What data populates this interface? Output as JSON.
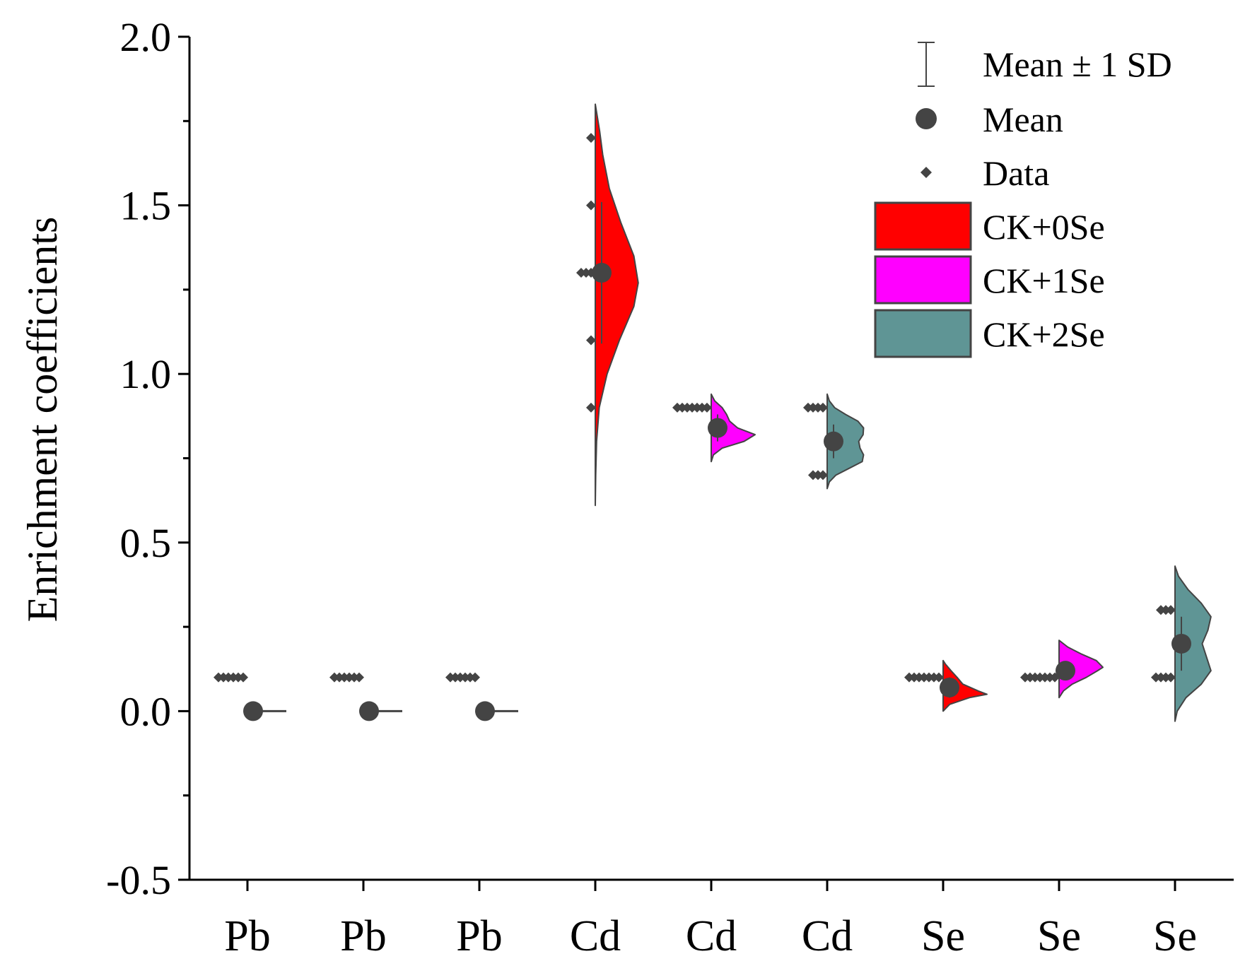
{
  "chart_data": {
    "type": "half-violin",
    "ylabel": "Enrichment coefficients",
    "xlabel": "",
    "ylim": [
      -0.5,
      2.0
    ],
    "y_ticks": [
      -0.5,
      0.0,
      0.5,
      1.0,
      1.5,
      2.0
    ],
    "y_tick_labels": [
      "-0.5",
      "0.0",
      "0.5",
      "1.0",
      "1.5",
      "2.0"
    ],
    "categories": [
      "Pb",
      "Pb",
      "Pb",
      "Cd",
      "Cd",
      "Cd",
      "Se",
      "Se",
      "Se"
    ],
    "legend": {
      "sd_label": "Mean ± 1 SD",
      "mean_label": "Mean",
      "data_label": "Data"
    },
    "series": [
      {
        "name": "CK+0Se",
        "color": "#ff0000"
      },
      {
        "name": "CK+1Se",
        "color": "#ff00ff"
      },
      {
        "name": "CK+2Se",
        "color": "#5f9595"
      }
    ],
    "groups": [
      {
        "category": "Pb",
        "series": "CK+0Se",
        "mean": 0.0,
        "sd": 0.0,
        "points": [
          0.1,
          0.1,
          0.1,
          0.1,
          0.1,
          0.1
        ],
        "violin": []
      },
      {
        "category": "Pb",
        "series": "CK+1Se",
        "mean": 0.0,
        "sd": 0.0,
        "points": [
          0.1,
          0.1,
          0.1,
          0.1,
          0.1,
          0.1
        ],
        "violin": []
      },
      {
        "category": "Pb",
        "series": "CK+2Se",
        "mean": 0.0,
        "sd": 0.0,
        "points": [
          0.1,
          0.1,
          0.1,
          0.1,
          0.1,
          0.1
        ],
        "violin": []
      },
      {
        "category": "Cd",
        "series": "CK+0Se",
        "mean": 1.3,
        "sd": 0.21,
        "points": [
          0.9,
          1.1,
          1.3,
          1.3,
          1.3,
          1.5,
          1.7
        ],
        "violin": [
          [
            0.61,
            0
          ],
          [
            0.7,
            0.01
          ],
          [
            0.8,
            0.03
          ],
          [
            0.9,
            0.09
          ],
          [
            1.0,
            0.27
          ],
          [
            1.1,
            0.55
          ],
          [
            1.2,
            0.88
          ],
          [
            1.27,
            0.98
          ],
          [
            1.35,
            0.88
          ],
          [
            1.45,
            0.58
          ],
          [
            1.55,
            0.32
          ],
          [
            1.65,
            0.17
          ],
          [
            1.72,
            0.1
          ],
          [
            1.8,
            0.0
          ]
        ]
      },
      {
        "category": "Cd",
        "series": "CK+1Se",
        "mean": 0.84,
        "sd": 0.04,
        "points": [
          0.9,
          0.9,
          0.9,
          0.9,
          0.9,
          0.9,
          0.9
        ],
        "violin": [
          [
            0.74,
            0
          ],
          [
            0.76,
            0.05
          ],
          [
            0.78,
            0.25
          ],
          [
            0.8,
            0.75
          ],
          [
            0.82,
            1.0
          ],
          [
            0.84,
            0.6
          ],
          [
            0.86,
            0.42
          ],
          [
            0.88,
            0.35
          ],
          [
            0.9,
            0.25
          ],
          [
            0.92,
            0.08
          ],
          [
            0.94,
            0
          ]
        ]
      },
      {
        "category": "Cd",
        "series": "CK+2Se",
        "mean": 0.8,
        "sd": 0.05,
        "points": [
          0.7,
          0.7,
          0.7,
          0.9,
          0.9,
          0.9,
          0.9
        ],
        "violin": [
          [
            0.66,
            0
          ],
          [
            0.68,
            0.05
          ],
          [
            0.7,
            0.2
          ],
          [
            0.72,
            0.5
          ],
          [
            0.74,
            0.8
          ],
          [
            0.76,
            0.83
          ],
          [
            0.78,
            0.75
          ],
          [
            0.8,
            0.72
          ],
          [
            0.82,
            0.82
          ],
          [
            0.84,
            0.83
          ],
          [
            0.86,
            0.7
          ],
          [
            0.88,
            0.42
          ],
          [
            0.9,
            0.17
          ],
          [
            0.92,
            0.05
          ],
          [
            0.94,
            0
          ]
        ]
      },
      {
        "category": "Se",
        "series": "CK+0Se",
        "mean": 0.07,
        "sd": 0.03,
        "points": [
          0.1,
          0.1,
          0.1,
          0.1,
          0.1,
          0.1,
          0.1
        ],
        "violin": [
          [
            0.0,
            0
          ],
          [
            0.02,
            0.15
          ],
          [
            0.04,
            0.6
          ],
          [
            0.05,
            1.0
          ],
          [
            0.06,
            0.8
          ],
          [
            0.08,
            0.45
          ],
          [
            0.1,
            0.32
          ],
          [
            0.12,
            0.18
          ],
          [
            0.14,
            0.05
          ],
          [
            0.15,
            0
          ]
        ]
      },
      {
        "category": "Se",
        "series": "CK+1Se",
        "mean": 0.12,
        "sd": 0.02,
        "points": [
          0.1,
          0.1,
          0.1,
          0.1,
          0.1,
          0.1,
          0.1
        ],
        "violin": [
          [
            0.04,
            0
          ],
          [
            0.06,
            0.1
          ],
          [
            0.08,
            0.3
          ],
          [
            0.1,
            0.62
          ],
          [
            0.12,
            0.88
          ],
          [
            0.13,
            1.0
          ],
          [
            0.15,
            0.85
          ],
          [
            0.17,
            0.5
          ],
          [
            0.19,
            0.2
          ],
          [
            0.21,
            0
          ]
        ]
      },
      {
        "category": "Se",
        "series": "CK+2Se",
        "mean": 0.2,
        "sd": 0.08,
        "points": [
          0.1,
          0.1,
          0.1,
          0.1,
          0.3,
          0.3,
          0.3
        ],
        "violin": [
          [
            -0.03,
            0
          ],
          [
            0.0,
            0.05
          ],
          [
            0.04,
            0.25
          ],
          [
            0.08,
            0.6
          ],
          [
            0.12,
            0.82
          ],
          [
            0.16,
            0.72
          ],
          [
            0.2,
            0.62
          ],
          [
            0.24,
            0.75
          ],
          [
            0.28,
            0.82
          ],
          [
            0.32,
            0.6
          ],
          [
            0.36,
            0.3
          ],
          [
            0.4,
            0.08
          ],
          [
            0.43,
            0
          ]
        ]
      }
    ]
  }
}
